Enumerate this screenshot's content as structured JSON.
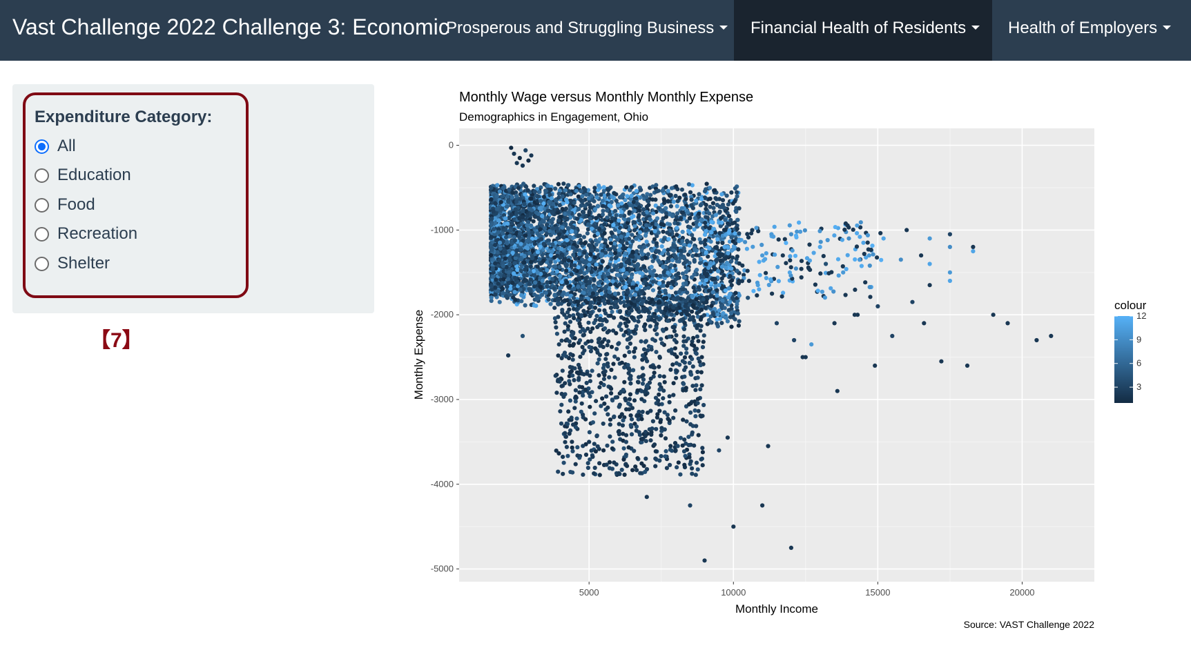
{
  "navbar": {
    "brand": "Vast Challenge 2022 Challenge 3: Economic",
    "items": [
      {
        "label": "Prosperous and Struggling Business"
      },
      {
        "label": "Financial Health of Residents"
      },
      {
        "label": "Health of Employers"
      }
    ]
  },
  "sidebar": {
    "label": "Expenditure Category:",
    "options": [
      "All",
      "Education",
      "Food",
      "Recreation",
      "Shelter"
    ],
    "selected": "All",
    "badge": "【7】"
  },
  "chart_data": {
    "type": "scatter",
    "title": "Monthly Wage versus Monthly Monthly Expense",
    "subtitle": "Demographics in Engagement, Ohio",
    "xlabel": "Monthly Income",
    "ylabel": "Monthly Expense",
    "caption": "Source: VAST Challenge 2022",
    "xlim": [
      500,
      22500
    ],
    "ylim": [
      -5150,
      200
    ],
    "xticks": [
      5000,
      10000,
      15000,
      20000
    ],
    "yticks": [
      0,
      -1000,
      -2000,
      -3000,
      -4000,
      -5000
    ],
    "legend": {
      "title": "colour",
      "ticks": [
        12,
        9,
        6,
        3
      ],
      "range": [
        1,
        12
      ],
      "low_color": "#132b43",
      "high_color": "#56b1f7"
    },
    "grid": true,
    "points": [
      [
        2400,
        -100,
        2
      ],
      [
        2600,
        -150,
        1
      ],
      [
        2800,
        -60,
        3
      ],
      [
        2500,
        -210,
        2
      ],
      [
        2900,
        -180,
        1
      ],
      [
        2700,
        -240,
        2
      ],
      [
        2300,
        -30,
        1
      ],
      [
        3000,
        -120,
        2
      ],
      [
        2500,
        -1240,
        3
      ],
      [
        2200,
        -2480,
        2
      ],
      [
        2700,
        -2250,
        4
      ],
      [
        6200,
        -1350,
        5
      ],
      [
        9500,
        -1650,
        10
      ],
      [
        9800,
        -1200,
        11
      ],
      [
        10500,
        -1800,
        4
      ],
      [
        11000,
        -1300,
        10
      ],
      [
        11500,
        -2100,
        3
      ],
      [
        12000,
        -1050,
        9
      ],
      [
        12500,
        -2500,
        2
      ],
      [
        13000,
        -1200,
        11
      ],
      [
        13200,
        -1400,
        4
      ],
      [
        13500,
        -2100,
        2
      ],
      [
        13600,
        -2900,
        2
      ],
      [
        13800,
        -1500,
        10
      ],
      [
        14000,
        -1100,
        9
      ],
      [
        14200,
        -2000,
        2
      ],
      [
        14500,
        -1150,
        11
      ],
      [
        14700,
        -1300,
        10
      ],
      [
        14900,
        -2600,
        2
      ],
      [
        15000,
        -1900,
        3
      ],
      [
        15200,
        -1100,
        11
      ],
      [
        15500,
        -2250,
        3
      ],
      [
        15800,
        -1350,
        9
      ],
      [
        16000,
        -1000,
        2
      ],
      [
        16200,
        -1850,
        3
      ],
      [
        16500,
        -1300,
        2
      ],
      [
        16800,
        -1100,
        10
      ],
      [
        16800,
        -1400,
        11
      ],
      [
        16800,
        -1650,
        2
      ],
      [
        17200,
        -2550,
        2
      ],
      [
        17500,
        -1200,
        9
      ],
      [
        17500,
        -1050,
        3
      ],
      [
        17500,
        -1500,
        10
      ],
      [
        17500,
        -1600,
        11
      ],
      [
        18300,
        -1250,
        11
      ],
      [
        18300,
        -1200,
        2
      ],
      [
        19000,
        -2000,
        2
      ],
      [
        19500,
        -2100,
        2
      ],
      [
        20500,
        -2300,
        2
      ],
      [
        21000,
        -2250,
        2
      ],
      [
        11200,
        -3550,
        2
      ],
      [
        11000,
        -4250,
        2
      ],
      [
        12000,
        -4750,
        2
      ],
      [
        10000,
        -4500,
        2
      ],
      [
        9000,
        -4900,
        2
      ],
      [
        8500,
        -4250,
        3
      ],
      [
        7000,
        -4150,
        2
      ],
      [
        9800,
        -3450,
        2
      ],
      [
        9500,
        -3600,
        3
      ],
      [
        8000,
        -3600,
        2
      ],
      [
        6500,
        -3100,
        2
      ],
      [
        5000,
        -3500,
        2
      ],
      [
        5500,
        -3600,
        1
      ],
      [
        4500,
        -3100,
        2
      ],
      [
        16600,
        -2100,
        2
      ],
      [
        18100,
        -2600,
        2
      ],
      [
        14300,
        -2000,
        2
      ],
      [
        12100,
        -2300,
        3
      ],
      [
        12400,
        -2500,
        2
      ],
      [
        12700,
        -2350,
        10
      ]
    ]
  }
}
